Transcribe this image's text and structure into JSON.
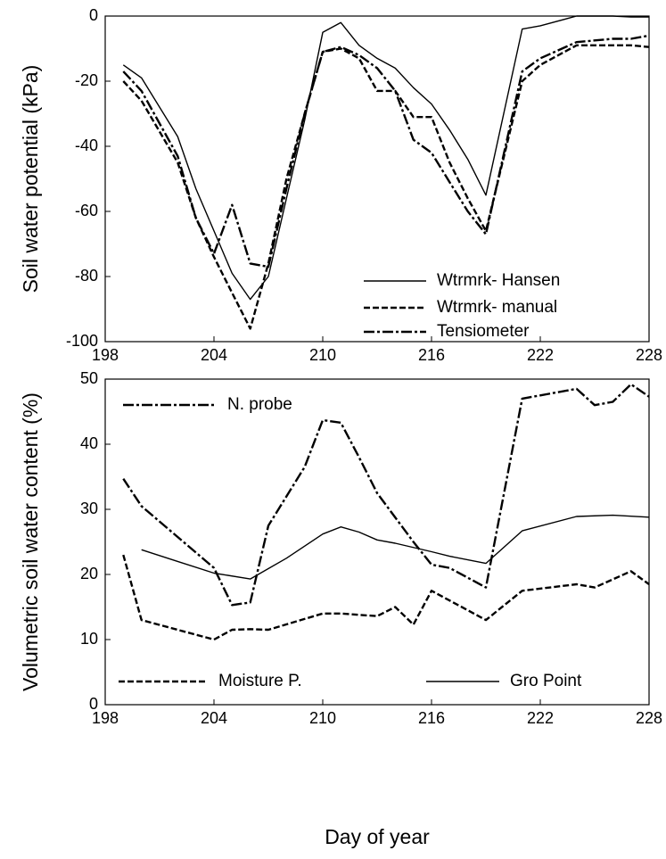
{
  "chart_data": [
    {
      "type": "line",
      "ylabel": "Soil water potential (kPa)",
      "xlim": [
        198,
        228
      ],
      "xticks": [
        198,
        204,
        210,
        216,
        222,
        228
      ],
      "ylim": [
        -100,
        0
      ],
      "yticks": [
        0,
        -20,
        -40,
        -60,
        -80,
        -100
      ],
      "series": [
        {
          "name": "Wtrmrk- Hansen",
          "color": "#000000",
          "style": "solid",
          "x": [
            199,
            200,
            202,
            203,
            204,
            205,
            206,
            207,
            208,
            209,
            210,
            211,
            212,
            213,
            214,
            215,
            216,
            217,
            218,
            219,
            221,
            222,
            224,
            226,
            227,
            228
          ],
          "values": [
            -15,
            -19,
            -37,
            -53,
            -66,
            -79,
            -87,
            -80,
            -56,
            -32,
            -5,
            -2,
            -9,
            -13,
            -16,
            -22,
            -27,
            -35,
            -44,
            -55,
            -4,
            -3,
            0,
            0,
            -0.3,
            -0.3
          ]
        },
        {
          "name": "Wtrmrk- manual",
          "color": "#000000",
          "style": "dashed",
          "x": [
            199,
            200,
            202,
            203,
            204,
            205,
            206,
            207,
            208,
            209,
            210,
            211,
            212,
            213,
            214,
            215,
            216,
            217,
            218,
            219,
            221,
            222,
            224,
            226,
            227,
            228
          ],
          "values": [
            -20,
            -26,
            -45,
            -62,
            -74,
            -85,
            -96,
            -76,
            -50,
            -30,
            -11,
            -10,
            -13,
            -23,
            -23,
            -31,
            -31,
            -45,
            -56,
            -66,
            -20,
            -15,
            -9,
            -9,
            -9,
            -9.5
          ]
        },
        {
          "name": "Tensiometer",
          "color": "#000000",
          "style": "dashdot",
          "x": [
            199,
            200,
            202,
            203,
            204,
            205,
            206,
            207,
            208,
            209,
            210,
            211,
            212,
            213,
            214,
            215,
            216,
            217,
            218,
            219,
            221,
            222,
            224,
            226,
            227,
            228
          ],
          "values": [
            -17,
            -23,
            -43,
            -62,
            -73,
            -58,
            -76,
            -77,
            -53,
            -30,
            -11,
            -9.5,
            -12,
            -16,
            -23,
            -38,
            -42,
            -51,
            -60,
            -67,
            -17,
            -13,
            -8,
            -7,
            -7,
            -6
          ]
        }
      ]
    },
    {
      "type": "line",
      "ylabel": "Volumetric soil water content (%)",
      "xlabel": "Day of year",
      "xlim": [
        198,
        228
      ],
      "xticks": [
        198,
        204,
        210,
        216,
        222,
        228
      ],
      "ylim": [
        0,
        50
      ],
      "yticks": [
        0,
        10,
        20,
        30,
        40,
        50
      ],
      "series": [
        {
          "name": "N. probe",
          "color": "#000000",
          "style": "dashdot",
          "x": [
            199,
            200,
            204,
            205,
            206,
            207,
            209,
            210,
            211,
            212,
            213,
            215,
            216,
            217,
            219,
            221,
            224,
            225,
            226,
            227,
            228
          ],
          "values": [
            34.7,
            30.5,
            21,
            15.3,
            15.7,
            27.5,
            36.5,
            43.7,
            43.3,
            38,
            32.5,
            25,
            21.5,
            21,
            18,
            47,
            48.5,
            46,
            46.5,
            49.2,
            47.3
          ]
        },
        {
          "name": "Moisture P.",
          "color": "#000000",
          "style": "dashed",
          "x": [
            199,
            200,
            204,
            205,
            206,
            207,
            210,
            211,
            212,
            213,
            214,
            215,
            216,
            219,
            221,
            224,
            225,
            227,
            228
          ],
          "values": [
            23,
            13,
            10,
            11.5,
            11.6,
            11.5,
            14,
            14,
            13.8,
            13.6,
            15,
            12.3,
            17.5,
            13,
            17.5,
            18.5,
            18,
            20.5,
            18.5
          ]
        },
        {
          "name": "Gro Point",
          "color": "#000000",
          "style": "solid",
          "x": [
            200,
            202,
            204,
            206,
            208,
            210,
            211,
            212,
            213,
            214,
            216,
            217,
            219,
            221,
            224,
            226,
            228
          ],
          "values": [
            23.8,
            22,
            20.2,
            19.3,
            22.5,
            26.2,
            27.3,
            26.5,
            25.3,
            24.8,
            23.5,
            22.8,
            21.7,
            26.7,
            28.9,
            29.1,
            28.8
          ]
        }
      ]
    }
  ]
}
